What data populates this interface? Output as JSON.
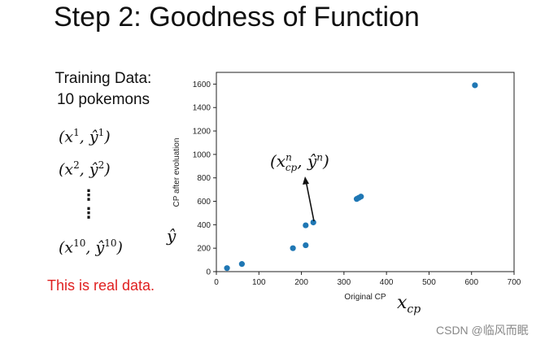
{
  "slide": {
    "title": "Step 2: Goodness of Function",
    "training_line1": "Training Data:",
    "training_line2": "10 pokemons",
    "pairs": [
      {
        "base": "(x",
        "sup1": "1",
        "mid": ", ŷ",
        "sup2": "1",
        "end": ")"
      },
      {
        "base": "(x",
        "sup1": "2",
        "mid": ", ŷ",
        "sup2": "2",
        "end": ")"
      },
      {
        "base": "(x",
        "sup1": "10",
        "mid": ", ŷ",
        "sup2": "10",
        "end": ")"
      }
    ],
    "vdots": "⋮",
    "real_note": "This is real data.",
    "yhat": "ŷ",
    "xcp_base": "x",
    "xcp_sub": "cp",
    "annot_open": "(x",
    "annot_sup": "n",
    "annot_sub": "cp",
    "annot_mid": ", ŷ",
    "annot_sup2": "n",
    "annot_close": ")",
    "watermark": "CSDN @临风而眠",
    "colors": {
      "point": "#1f77b4",
      "note": "#e02020",
      "text": "#111111"
    }
  },
  "chart_data": {
    "type": "scatter",
    "xlabel": "Original CP",
    "ylabel": "CP after evoluation",
    "xlim": [
      0,
      700
    ],
    "ylim": [
      0,
      1700
    ],
    "xticks": [
      0,
      100,
      200,
      300,
      400,
      500,
      600,
      700
    ],
    "yticks": [
      0,
      200,
      400,
      600,
      800,
      1000,
      1200,
      1400,
      1600
    ],
    "grid": false,
    "points": [
      {
        "x": 25,
        "y": 30
      },
      {
        "x": 60,
        "y": 65
      },
      {
        "x": 180,
        "y": 200
      },
      {
        "x": 210,
        "y": 225
      },
      {
        "x": 210,
        "y": 395
      },
      {
        "x": 228,
        "y": 420
      },
      {
        "x": 330,
        "y": 620
      },
      {
        "x": 335,
        "y": 630
      },
      {
        "x": 340,
        "y": 640
      },
      {
        "x": 608,
        "y": 1590
      }
    ]
  }
}
